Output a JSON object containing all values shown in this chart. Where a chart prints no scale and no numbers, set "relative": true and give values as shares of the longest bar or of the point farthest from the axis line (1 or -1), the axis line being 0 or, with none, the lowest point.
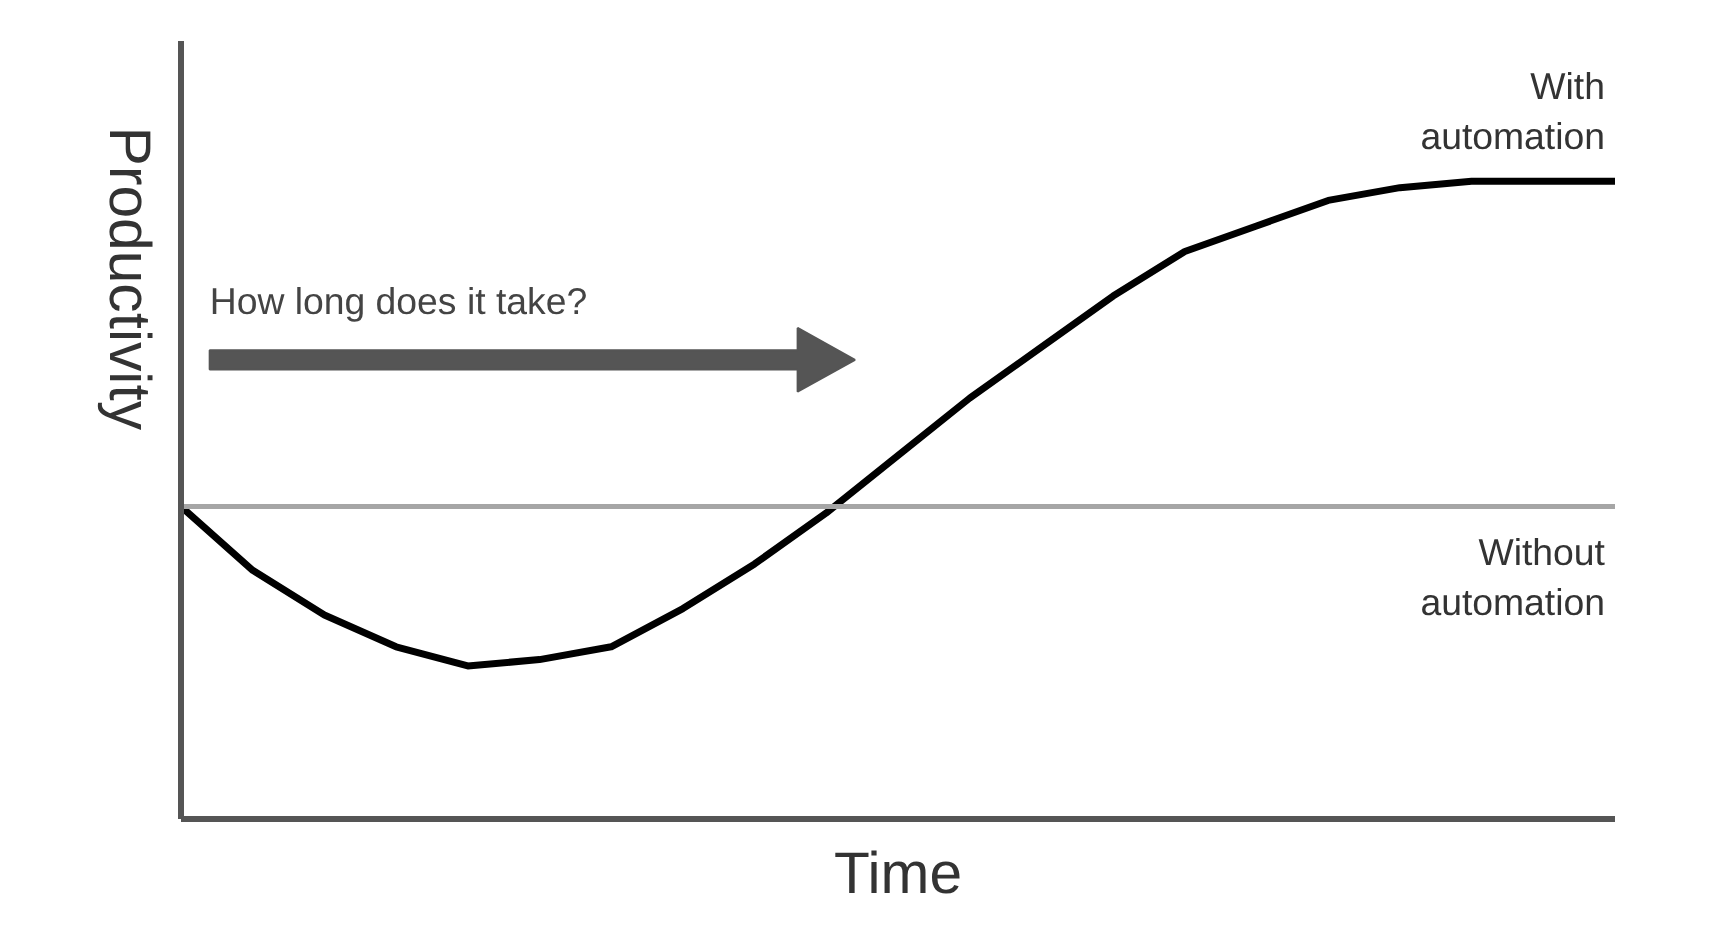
{
  "chart_data": {
    "type": "line",
    "relative": true,
    "xlabel": "Time",
    "ylabel": "Productivity",
    "legend": false,
    "grid": false,
    "tick_labels": false,
    "categories": [
      null,
      null,
      null,
      null,
      null,
      null,
      null,
      null,
      null,
      null,
      null,
      null,
      null,
      null,
      null,
      null,
      null,
      null,
      null,
      null,
      null
    ],
    "series": [
      {
        "name": "With automation",
        "color": "#000000",
        "values": [
          0.49,
          0.39,
          0.32,
          0.27,
          0.24,
          0.25,
          0.27,
          0.33,
          0.4,
          0.48,
          0.57,
          0.66,
          0.74,
          0.82,
          0.89,
          0.93,
          0.97,
          0.99,
          1.0,
          1.0,
          1.0
        ]
      },
      {
        "name": "Without automation",
        "color": "#a6a6a6",
        "values": [
          0.49,
          0.49,
          0.49,
          0.49,
          0.49,
          0.49,
          0.49,
          0.49,
          0.49,
          0.49,
          0.49,
          0.49,
          0.49,
          0.49,
          0.49,
          0.49,
          0.49,
          0.49,
          0.49,
          0.49,
          0.49
        ]
      }
    ],
    "annotations": [
      "How long does it take?"
    ]
  }
}
